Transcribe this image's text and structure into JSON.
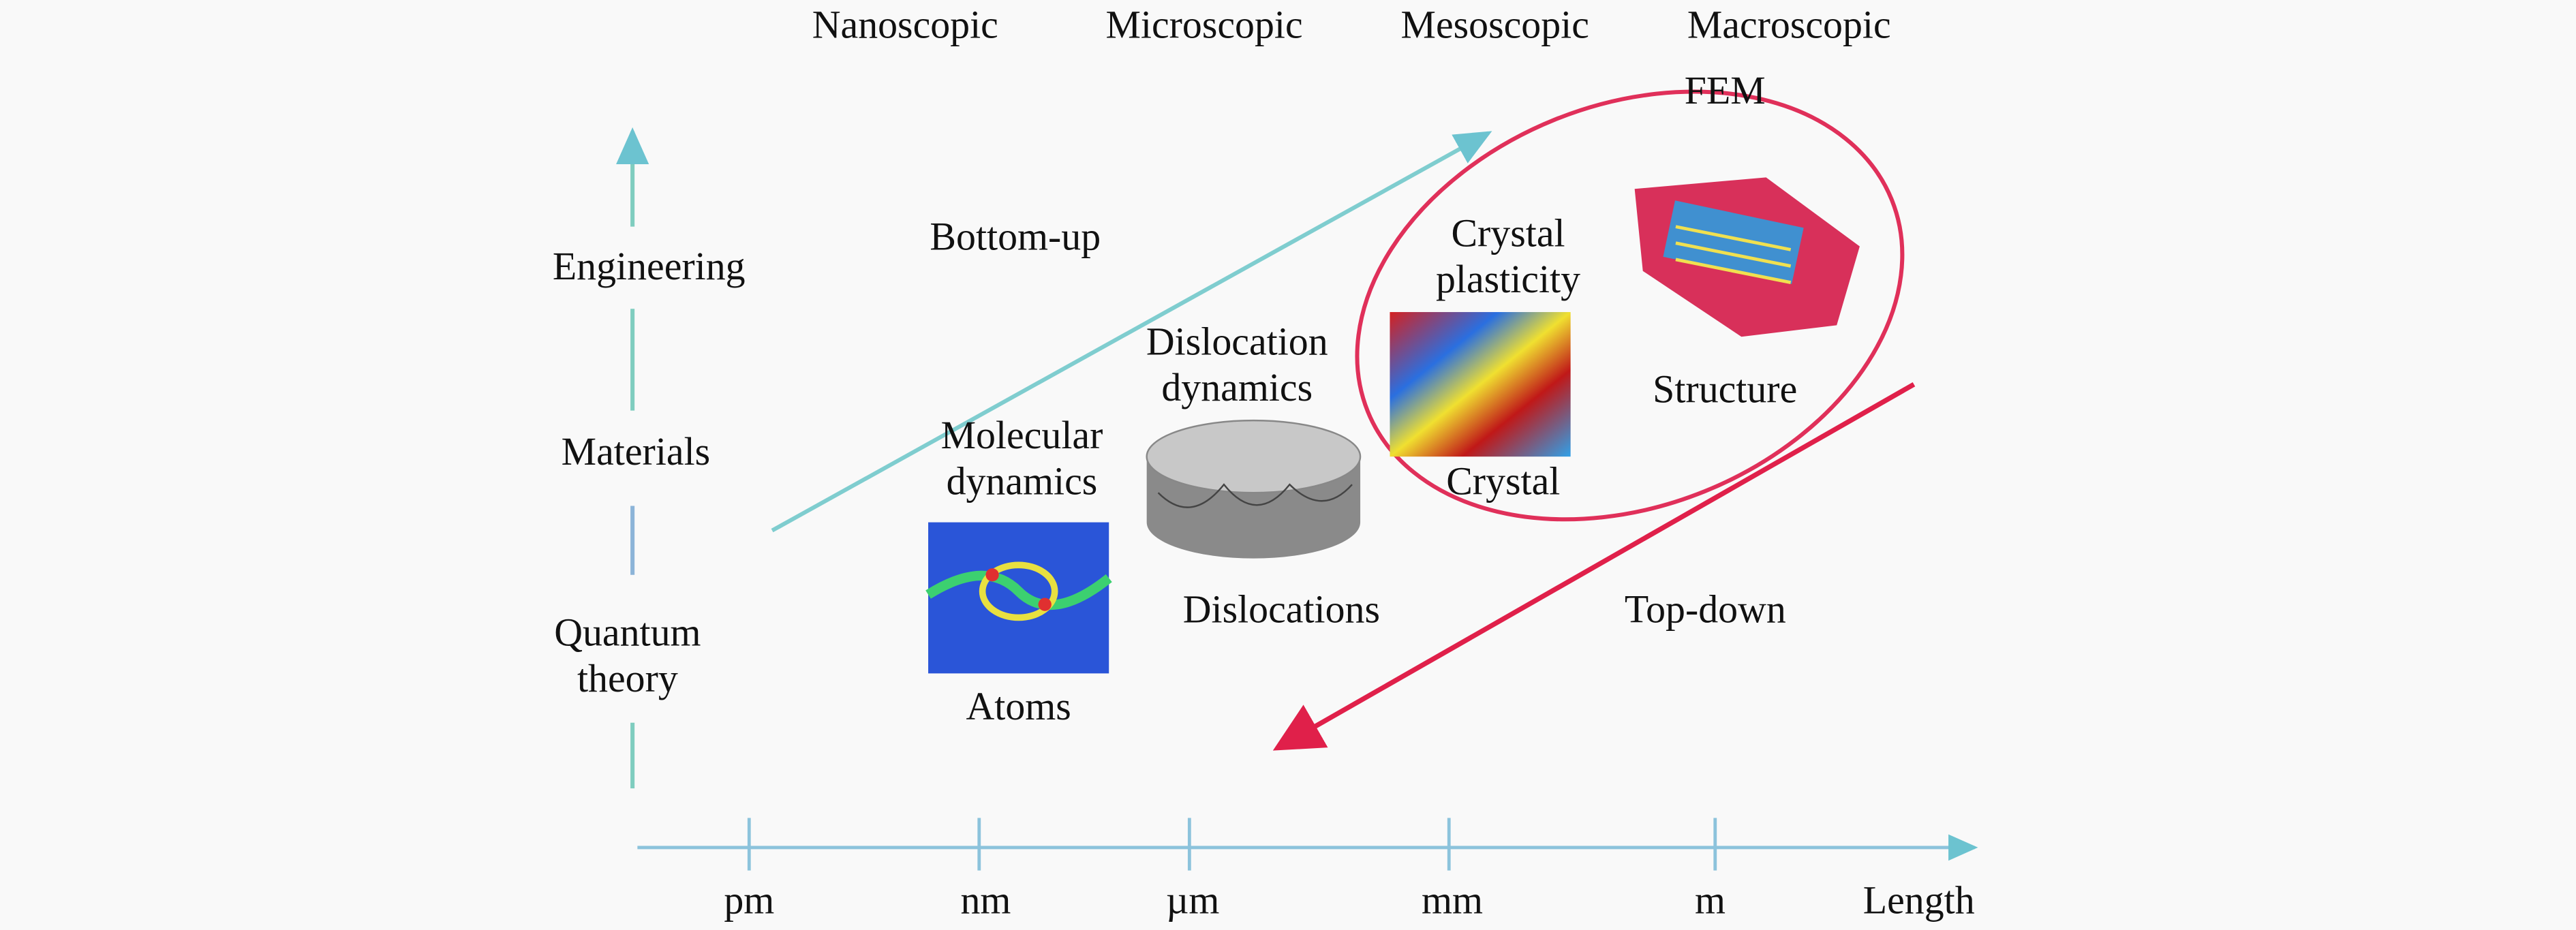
{
  "scales": [
    "Nanoscopic",
    "Microscopic",
    "Mesoscopic",
    "Macroscopic"
  ],
  "fem": "FEM",
  "levels": [
    "Engineering",
    "Materials",
    "Quantum theory"
  ],
  "approaches": {
    "bottom_up": "Bottom-up",
    "top_down": "Top-down"
  },
  "models": [
    {
      "method": "Molecular dynamics",
      "object": "Atoms"
    },
    {
      "method": "Dislocation dynamics",
      "object": "Dislocations"
    },
    {
      "method": "Crystal plasticity",
      "object": "Crystal"
    },
    {
      "object": "Structure"
    }
  ],
  "axis": {
    "ticks": [
      "pm",
      "nm",
      "µm",
      "mm",
      "m"
    ],
    "title": "Length"
  }
}
